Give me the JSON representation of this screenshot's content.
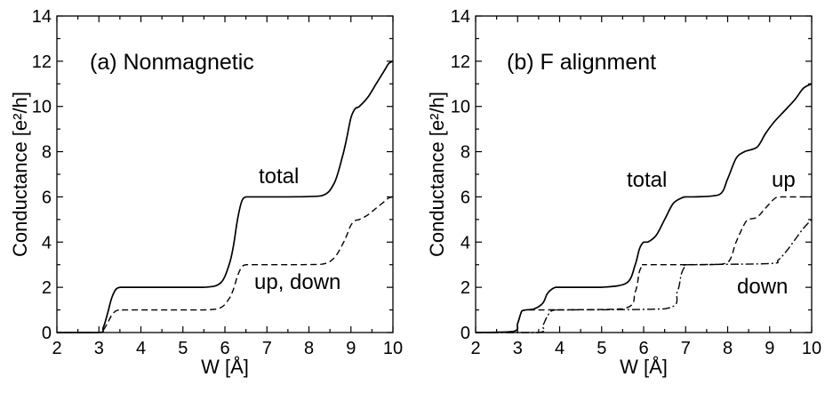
{
  "chart_data": [
    {
      "type": "line",
      "title": "(a) Nonmagnetic",
      "xlabel": "W [Å]",
      "ylabel": "Conductance [e²/h]",
      "xlim": [
        2,
        10
      ],
      "ylim": [
        0,
        14
      ],
      "xticks": [
        "2",
        "3",
        "4",
        "5",
        "6",
        "7",
        "8",
        "9",
        "10"
      ],
      "yticks": [
        "0",
        "2",
        "4",
        "6",
        "8",
        "10",
        "12",
        "14"
      ],
      "grid": false,
      "series": [
        {
          "name": "total",
          "style": "solid",
          "x": [
            2.0,
            3.0,
            3.1,
            3.2,
            3.3,
            3.4,
            3.5,
            3.6,
            4.5,
            5.5,
            5.9,
            6.1,
            6.2,
            6.3,
            6.4,
            6.5,
            6.7,
            7.5,
            8.3,
            8.6,
            8.8,
            8.9,
            9.0,
            9.1,
            9.2,
            9.4,
            9.6,
            9.8,
            9.9,
            10.0
          ],
          "y": [
            0.0,
            0.0,
            0.2,
            0.8,
            1.5,
            1.9,
            2.0,
            2.0,
            2.0,
            2.0,
            2.2,
            3.0,
            3.8,
            5.0,
            5.8,
            6.0,
            6.0,
            6.0,
            6.05,
            6.6,
            7.8,
            8.6,
            9.5,
            9.9,
            10.0,
            10.4,
            11.0,
            11.6,
            11.9,
            12.0
          ]
        },
        {
          "name": "up, down",
          "style": "dashed",
          "x": [
            2.0,
            3.0,
            3.1,
            3.2,
            3.3,
            3.4,
            3.5,
            3.6,
            4.5,
            5.5,
            5.9,
            6.1,
            6.2,
            6.3,
            6.4,
            6.5,
            6.7,
            7.5,
            8.3,
            8.6,
            8.8,
            8.9,
            9.0,
            9.1,
            9.2,
            9.4,
            9.6,
            9.8,
            9.9,
            10.0
          ],
          "y": [
            0.0,
            0.0,
            0.1,
            0.4,
            0.75,
            0.95,
            1.0,
            1.0,
            1.0,
            1.0,
            1.1,
            1.5,
            1.9,
            2.5,
            2.9,
            3.0,
            3.0,
            3.0,
            3.02,
            3.3,
            3.9,
            4.3,
            4.75,
            4.95,
            5.0,
            5.2,
            5.5,
            5.8,
            5.95,
            6.0
          ]
        }
      ]
    },
    {
      "type": "line",
      "title": "(b) F alignment",
      "xlabel": "W [Å]",
      "ylabel": "Conductance [e²/h]",
      "xlim": [
        2,
        10
      ],
      "ylim": [
        0,
        14
      ],
      "xticks": [
        "2",
        "3",
        "4",
        "5",
        "6",
        "7",
        "8",
        "9",
        "10"
      ],
      "yticks": [
        "0",
        "2",
        "4",
        "6",
        "8",
        "10",
        "12",
        "14"
      ],
      "grid": false,
      "series": [
        {
          "name": "total",
          "style": "solid",
          "x": [
            2.0,
            2.9,
            3.0,
            3.1,
            3.2,
            3.4,
            3.6,
            3.7,
            3.8,
            3.9,
            4.0,
            4.2,
            5.0,
            5.6,
            5.8,
            5.9,
            6.0,
            6.1,
            6.3,
            6.5,
            6.7,
            6.9,
            7.0,
            7.2,
            7.8,
            8.0,
            8.2,
            8.4,
            8.7,
            8.9,
            9.1,
            9.3,
            9.6,
            9.8,
            10.0
          ],
          "y": [
            0.0,
            0.05,
            0.4,
            0.95,
            1.0,
            1.05,
            1.3,
            1.7,
            1.9,
            2.0,
            2.0,
            2.0,
            2.0,
            2.2,
            3.0,
            3.7,
            4.0,
            4.0,
            4.3,
            5.0,
            5.7,
            5.95,
            6.0,
            6.0,
            6.1,
            6.8,
            7.7,
            8.0,
            8.2,
            8.8,
            9.3,
            9.7,
            10.3,
            10.8,
            11.0
          ]
        },
        {
          "name": "up",
          "style": "dashed",
          "x": [
            2.0,
            2.9,
            3.0,
            3.1,
            3.2,
            3.5,
            5.5,
            5.8,
            5.9,
            6.0,
            6.1,
            7.5,
            8.0,
            8.2,
            8.4,
            8.5,
            8.7,
            8.9,
            9.1,
            9.2,
            9.3,
            10.0
          ],
          "y": [
            0.0,
            0.05,
            0.4,
            0.95,
            1.0,
            1.0,
            1.05,
            1.8,
            2.7,
            3.0,
            3.0,
            3.0,
            3.1,
            4.0,
            4.8,
            5.0,
            5.1,
            5.5,
            5.9,
            6.0,
            6.0,
            6.0
          ]
        },
        {
          "name": "down",
          "style": "dashdot",
          "x": [
            2.0,
            3.5,
            3.6,
            3.7,
            3.8,
            3.9,
            4.0,
            6.5,
            6.8,
            6.9,
            7.0,
            7.1,
            9.0,
            9.2,
            9.4,
            9.6,
            9.8,
            10.0
          ],
          "y": [
            0.0,
            0.0,
            0.3,
            0.7,
            0.95,
            1.0,
            1.0,
            1.05,
            1.8,
            2.6,
            2.95,
            3.0,
            3.05,
            3.2,
            3.6,
            4.1,
            4.6,
            5.0
          ]
        }
      ]
    }
  ],
  "annotations": {
    "a_total": "total",
    "a_updown": "up, down",
    "b_total": "total",
    "b_up": "up",
    "b_down": "down"
  }
}
